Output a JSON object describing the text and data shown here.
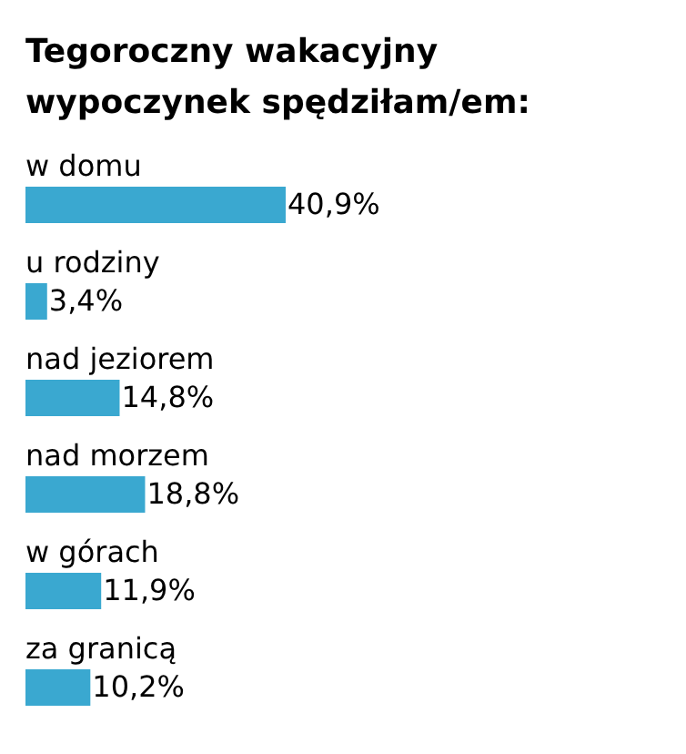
{
  "chart_data": {
    "type": "bar",
    "orientation": "horizontal",
    "title": "Tegoroczny wakacyjny wypoczynek spędziłam/em:",
    "categories": [
      "w domu",
      "u rodziny",
      "nad jeziorem",
      "nad morzem",
      "w górach",
      "za granicą"
    ],
    "values": [
      40.9,
      3.4,
      14.8,
      18.8,
      11.9,
      10.2
    ],
    "value_labels": [
      "40,9%",
      "3,4%",
      "14,8%",
      "18,8%",
      "11,9%",
      "10,2%"
    ],
    "color": "#3aa8d0"
  }
}
